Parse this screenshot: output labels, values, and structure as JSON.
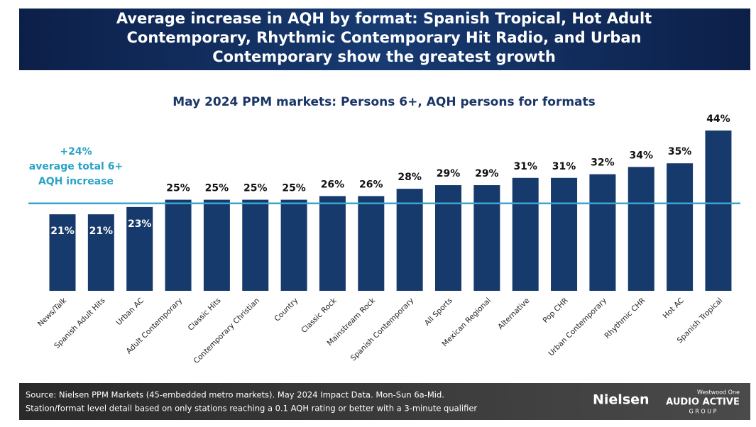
{
  "chart_data": {
    "type": "bar",
    "title": [
      "Average increase in AQH by format: Spanish Tropical, Hot Adult",
      "Contemporary, Rhythmic Contemporary Hit Radio, and Urban",
      "Contemporary show the greatest growth"
    ],
    "subtitle": "May 2024 PPM markets: Persons 6+, AQH persons for formats",
    "categories": [
      "News/Talk",
      "Spanish Adult Hits",
      "Urban AC",
      "Adult Contemporary",
      "Classic Hits",
      "Contemporary Christian",
      "Country",
      "Classic Rock",
      "Mainstream Rock",
      "Spanish Contemporary",
      "All Sports",
      "Mexican Regional",
      "Alternative",
      "Pop CHR",
      "Urban Contemporary",
      "Rhythmic CHR",
      "Hot AC",
      "Spanish Tropical"
    ],
    "values": [
      21,
      21,
      23,
      25,
      25,
      25,
      25,
      26,
      26,
      28,
      29,
      29,
      31,
      31,
      32,
      34,
      35,
      44
    ],
    "value_labels": [
      "21%",
      "21%",
      "23%",
      "25%",
      "25%",
      "25%",
      "25%",
      "26%",
      "26%",
      "28%",
      "29%",
      "29%",
      "31%",
      "31%",
      "32%",
      "34%",
      "35%",
      "44%"
    ],
    "color": "#173a6c",
    "ylim": [
      0,
      44
    ],
    "reference_value": 24,
    "reference_color": "#3aa6d0",
    "annotation": [
      "+24%",
      "average total 6+",
      "AQH increase"
    ]
  },
  "footer": {
    "source": [
      "Source: Nielsen PPM Markets (45-embedded metro markets). May 2024 Impact Data. Mon-Sun 6a-Mid.",
      "Station/format level detail based on only stations reaching a 0.1 AQH rating or better with a 3-minute qualifier"
    ],
    "logo_nielsen": "Nielsen",
    "logo_westwood": "Westwood One",
    "logo_audio": "AUDIO ACTIVE",
    "logo_group": "G R O U P"
  }
}
